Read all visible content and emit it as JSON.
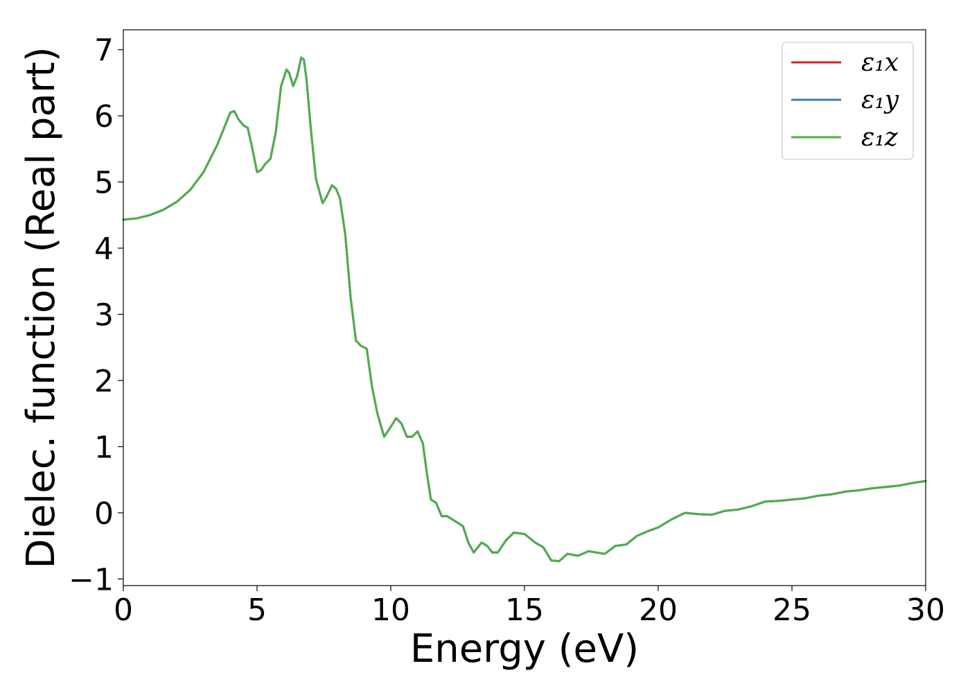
{
  "chart_data": {
    "type": "line",
    "title": "",
    "xlabel": "Energy (eV)",
    "ylabel": "Dielec. function (Real part)",
    "xlim": [
      0,
      30
    ],
    "ylim": [
      -1.1,
      7.3
    ],
    "xticks": [
      0,
      5,
      10,
      15,
      20,
      25,
      30
    ],
    "yticks": [
      -1,
      0,
      1,
      2,
      3,
      4,
      5,
      6,
      7
    ],
    "xtick_labels": [
      "0",
      "5",
      "10",
      "15",
      "20",
      "25",
      "30"
    ],
    "ytick_labels": [
      "−1",
      "0",
      "1",
      "2",
      "3",
      "4",
      "5",
      "6",
      "7"
    ],
    "grid": false,
    "legend_position": "top-right",
    "x": [
      0,
      0.5,
      1.0,
      1.5,
      2.0,
      2.5,
      3.0,
      3.5,
      3.8,
      4.0,
      4.15,
      4.3,
      4.5,
      4.65,
      4.8,
      5.0,
      5.15,
      5.3,
      5.5,
      5.7,
      5.9,
      6.1,
      6.2,
      6.35,
      6.5,
      6.65,
      6.75,
      6.85,
      7.0,
      7.2,
      7.45,
      7.6,
      7.8,
      7.95,
      8.1,
      8.3,
      8.5,
      8.7,
      8.9,
      9.1,
      9.3,
      9.5,
      9.75,
      10.0,
      10.2,
      10.4,
      10.6,
      10.8,
      11.0,
      11.2,
      11.35,
      11.5,
      11.7,
      11.9,
      12.1,
      12.3,
      12.5,
      12.7,
      12.9,
      13.1,
      13.2,
      13.4,
      13.6,
      13.8,
      14.0,
      14.3,
      14.6,
      15.0,
      15.4,
      15.7,
      16.0,
      16.3,
      16.6,
      17.0,
      17.4,
      17.7,
      18.0,
      18.4,
      18.8,
      19.2,
      19.6,
      20.0,
      20.5,
      21.0,
      21.5,
      22.0,
      22.5,
      23.0,
      23.5,
      24.0,
      24.5,
      25.0,
      25.5,
      26.0,
      26.5,
      27.0,
      27.5,
      28.0,
      28.5,
      29.0,
      29.5,
      30.0
    ],
    "series": [
      {
        "name": "ε₁x",
        "color": "#e41a1c",
        "values": [
          4.43,
          4.45,
          4.5,
          4.58,
          4.7,
          4.88,
          5.15,
          5.55,
          5.85,
          6.05,
          6.07,
          5.95,
          5.85,
          5.82,
          5.55,
          5.15,
          5.18,
          5.27,
          5.35,
          5.75,
          6.45,
          6.7,
          6.65,
          6.45,
          6.6,
          6.88,
          6.85,
          6.55,
          5.85,
          5.05,
          4.68,
          4.78,
          4.95,
          4.9,
          4.75,
          4.2,
          3.25,
          2.6,
          2.52,
          2.48,
          1.9,
          1.5,
          1.15,
          1.3,
          1.43,
          1.35,
          1.15,
          1.15,
          1.23,
          1.05,
          0.6,
          0.2,
          0.15,
          -0.05,
          -0.05,
          -0.1,
          -0.15,
          -0.2,
          -0.45,
          -0.6,
          -0.55,
          -0.45,
          -0.5,
          -0.6,
          -0.6,
          -0.42,
          -0.3,
          -0.32,
          -0.45,
          -0.52,
          -0.72,
          -0.73,
          -0.62,
          -0.65,
          -0.58,
          -0.6,
          -0.62,
          -0.5,
          -0.48,
          -0.35,
          -0.28,
          -0.22,
          -0.1,
          0.0,
          -0.02,
          -0.03,
          0.03,
          0.05,
          0.1,
          0.17,
          0.18,
          0.2,
          0.22,
          0.26,
          0.28,
          0.32,
          0.34,
          0.37,
          0.39,
          0.41,
          0.45,
          0.48
        ]
      },
      {
        "name": "ε₁y",
        "color": "#377eb8",
        "values": [
          4.43,
          4.45,
          4.5,
          4.58,
          4.7,
          4.88,
          5.15,
          5.55,
          5.85,
          6.05,
          6.07,
          5.95,
          5.85,
          5.82,
          5.55,
          5.15,
          5.18,
          5.27,
          5.35,
          5.75,
          6.45,
          6.7,
          6.65,
          6.45,
          6.6,
          6.88,
          6.85,
          6.55,
          5.85,
          5.05,
          4.68,
          4.78,
          4.95,
          4.9,
          4.75,
          4.2,
          3.25,
          2.6,
          2.52,
          2.48,
          1.9,
          1.5,
          1.15,
          1.3,
          1.43,
          1.35,
          1.15,
          1.15,
          1.23,
          1.05,
          0.6,
          0.2,
          0.15,
          -0.05,
          -0.05,
          -0.1,
          -0.15,
          -0.2,
          -0.45,
          -0.6,
          -0.55,
          -0.45,
          -0.5,
          -0.6,
          -0.6,
          -0.42,
          -0.3,
          -0.32,
          -0.45,
          -0.52,
          -0.72,
          -0.73,
          -0.62,
          -0.65,
          -0.58,
          -0.6,
          -0.62,
          -0.5,
          -0.48,
          -0.35,
          -0.28,
          -0.22,
          -0.1,
          0.0,
          -0.02,
          -0.03,
          0.03,
          0.05,
          0.1,
          0.17,
          0.18,
          0.2,
          0.22,
          0.26,
          0.28,
          0.32,
          0.34,
          0.37,
          0.39,
          0.41,
          0.45,
          0.48
        ]
      },
      {
        "name": "ε₁z",
        "color": "#4daf4a",
        "values": [
          4.43,
          4.45,
          4.5,
          4.58,
          4.7,
          4.88,
          5.15,
          5.55,
          5.85,
          6.05,
          6.07,
          5.95,
          5.85,
          5.82,
          5.55,
          5.15,
          5.18,
          5.27,
          5.35,
          5.75,
          6.45,
          6.7,
          6.65,
          6.45,
          6.6,
          6.88,
          6.85,
          6.55,
          5.85,
          5.05,
          4.68,
          4.78,
          4.95,
          4.9,
          4.75,
          4.2,
          3.25,
          2.6,
          2.52,
          2.48,
          1.9,
          1.5,
          1.15,
          1.3,
          1.43,
          1.35,
          1.15,
          1.15,
          1.23,
          1.05,
          0.6,
          0.2,
          0.15,
          -0.05,
          -0.05,
          -0.1,
          -0.15,
          -0.2,
          -0.45,
          -0.6,
          -0.55,
          -0.45,
          -0.5,
          -0.6,
          -0.6,
          -0.42,
          -0.3,
          -0.32,
          -0.45,
          -0.52,
          -0.72,
          -0.73,
          -0.62,
          -0.65,
          -0.58,
          -0.6,
          -0.62,
          -0.5,
          -0.48,
          -0.35,
          -0.28,
          -0.22,
          -0.1,
          0.0,
          -0.02,
          -0.03,
          0.03,
          0.05,
          0.1,
          0.17,
          0.18,
          0.2,
          0.22,
          0.26,
          0.28,
          0.32,
          0.34,
          0.37,
          0.39,
          0.41,
          0.45,
          0.48
        ]
      }
    ]
  }
}
